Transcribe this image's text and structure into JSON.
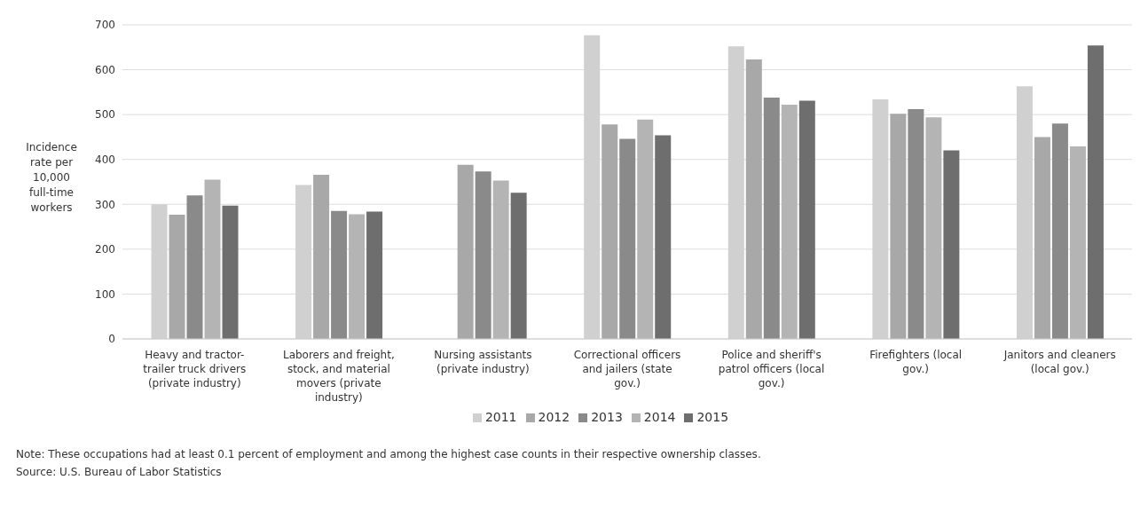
{
  "chart_data": {
    "type": "bar",
    "ylabel": "Incidence rate per 10,000 full-time workers",
    "categories": [
      "Heavy and tractor-trailer truck drivers (private industry)",
      "Laborers and freight, stock, and material movers (private industry)",
      "Nursing assistants (private industry)",
      "Correctional officers and jailers (state gov.)",
      "Police and sheriff's patrol officers (local gov.)",
      "Firefighters (local gov.)",
      "Janitors and cleaners (local gov.)"
    ],
    "series": [
      {
        "name": "2011",
        "color": "#d0d0d0",
        "values": [
          300,
          343,
          null,
          677,
          652,
          534,
          563
        ]
      },
      {
        "name": "2012",
        "color": "#a8a8a8",
        "values": [
          277,
          366,
          388,
          478,
          623,
          502,
          450
        ]
      },
      {
        "name": "2013",
        "color": "#8a8a8a",
        "values": [
          320,
          285,
          373,
          446,
          538,
          512,
          480
        ]
      },
      {
        "name": "2014",
        "color": "#b4b4b4",
        "values": [
          355,
          278,
          353,
          489,
          522,
          494,
          429
        ]
      },
      {
        "name": "2015",
        "color": "#6e6e6e",
        "values": [
          297,
          284,
          326,
          454,
          531,
          420,
          654
        ]
      }
    ],
    "ylim": [
      0,
      700
    ],
    "yticks": [
      0,
      100,
      200,
      300,
      400,
      500,
      600,
      700
    ],
    "grid": "y",
    "legend": "bottom",
    "annotations": [
      "Note: These occupations had at least 0.1 percent of employment and among the highest case counts in their respective ownership classes.",
      "Source: U.S. Bureau of Labor Statistics"
    ]
  }
}
